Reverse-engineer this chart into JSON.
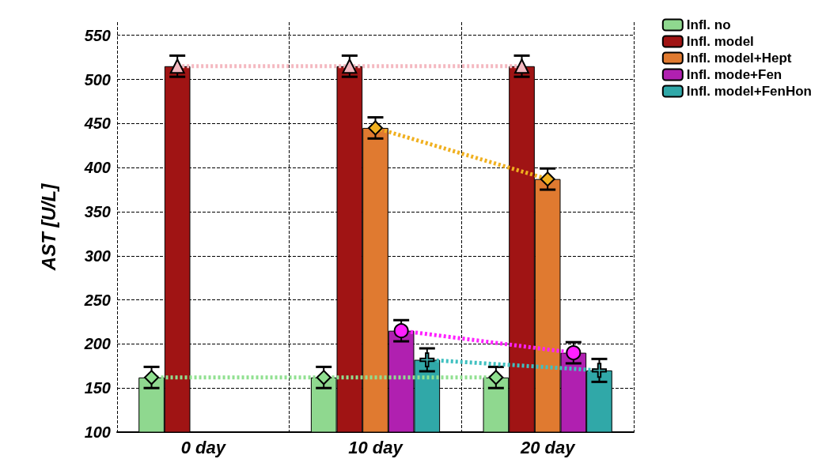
{
  "chart_data": {
    "type": "bar",
    "ylabel": "AST [U/L]",
    "categories": [
      "0 day",
      "10 day",
      "20 day"
    ],
    "series": [
      {
        "name": "Infl. no",
        "color": "#8fd88f",
        "values": [
          162,
          162,
          162
        ],
        "errors": [
          12,
          12,
          12
        ]
      },
      {
        "name": "Infl. model",
        "color": "#a01414",
        "values": [
          515,
          515,
          515
        ],
        "errors": [
          12,
          12,
          12
        ]
      },
      {
        "name": "Infl. model+Hept",
        "color": "#e07a30",
        "values": [
          null,
          445,
          387
        ],
        "errors": [
          null,
          12,
          12
        ]
      },
      {
        "name": "Infl. mode+Fen",
        "color": "#b020b0",
        "values": [
          null,
          215,
          190
        ],
        "errors": [
          null,
          12,
          12
        ]
      },
      {
        "name": "Infl. model+FenHon",
        "color": "#30a8a8",
        "values": [
          null,
          182,
          170
        ],
        "errors": [
          null,
          13,
          13
        ]
      },
      {
        "type": "line",
        "color": "#90e090",
        "values": [
          162,
          162,
          162
        ],
        "marker": "diamond",
        "line_style": "dotted"
      },
      {
        "type": "line",
        "color": "#f4b8c0",
        "values": [
          515,
          515,
          515
        ],
        "marker": "triangle",
        "line_style": "dotted"
      },
      {
        "type": "line",
        "color": "#f0b020",
        "values": [
          null,
          445,
          387
        ],
        "marker": "diamond",
        "line_style": "dotted"
      },
      {
        "type": "line",
        "color": "#ff20ff",
        "values": [
          null,
          215,
          190
        ],
        "marker": "circle",
        "line_style": "dotted"
      },
      {
        "type": "line",
        "color": "#40c0c0",
        "values": [
          null,
          182,
          170
        ],
        "marker": "cross",
        "line_style": "dotted"
      }
    ],
    "ylim": [
      100,
      565
    ],
    "yticks": [
      100,
      150,
      200,
      250,
      300,
      350,
      400,
      450,
      500,
      550
    ],
    "grid": true,
    "legend": "top right"
  }
}
